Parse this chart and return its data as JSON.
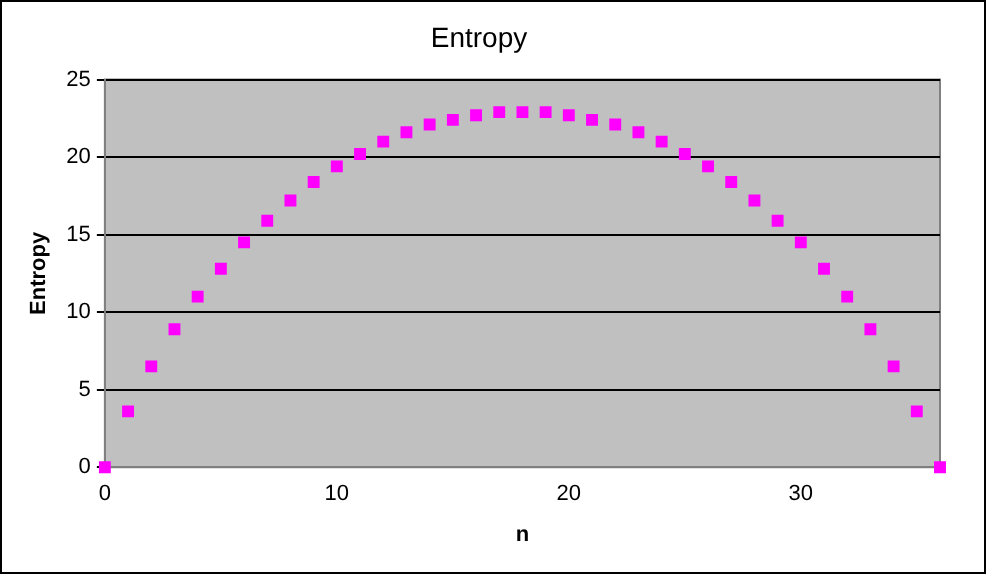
{
  "chart_data": {
    "type": "scatter",
    "title": "Entropy",
    "xlabel": "n",
    "ylabel": "Entropy",
    "x": [
      0,
      1,
      2,
      3,
      4,
      5,
      6,
      7,
      8,
      9,
      10,
      11,
      12,
      13,
      14,
      15,
      16,
      17,
      18,
      19,
      20,
      21,
      22,
      23,
      24,
      25,
      26,
      27,
      28,
      29,
      30,
      31,
      32,
      33,
      34,
      35,
      36
    ],
    "series": [
      {
        "color": "#ff00ff",
        "values": [
          0,
          3.6,
          6.5,
          8.9,
          11,
          12.8,
          14.5,
          15.9,
          17.2,
          18.4,
          19.4,
          20.2,
          21,
          21.6,
          22.1,
          22.4,
          22.7,
          22.9,
          22.9,
          22.9,
          22.7,
          22.4,
          22.1,
          21.6,
          21,
          20.2,
          19.4,
          18.4,
          17.2,
          15.9,
          14.5,
          12.8,
          11,
          8.9,
          6.5,
          3.6,
          0
        ]
      }
    ],
    "xlim": [
      0,
      36
    ],
    "xticks": [
      0,
      10,
      20,
      30
    ],
    "ylim": [
      0,
      25
    ],
    "yticks": [
      0,
      5,
      10,
      15,
      20,
      25
    ],
    "grid": "y",
    "legend": false,
    "marker": "square"
  }
}
